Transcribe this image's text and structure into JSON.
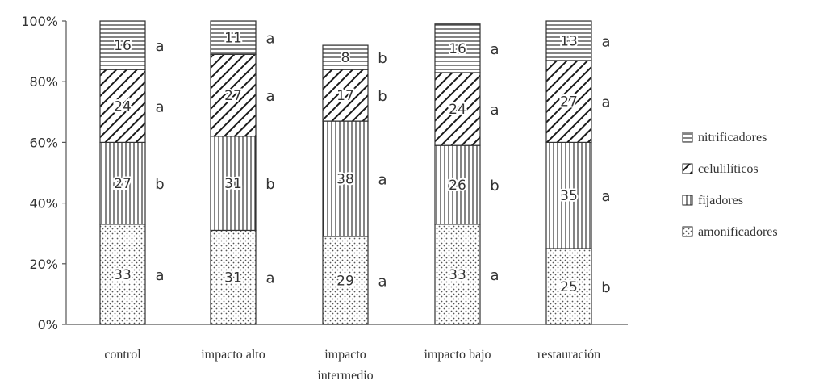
{
  "chart_data": {
    "type": "bar",
    "stacked": true,
    "percent_scale": true,
    "categories": [
      [
        "control"
      ],
      [
        "impacto alto"
      ],
      [
        "impacto",
        "intermedio"
      ],
      [
        "impacto bajo"
      ],
      [
        "restauración"
      ]
    ],
    "series": [
      {
        "name": "amonificadores",
        "pattern": "dots",
        "values": [
          33,
          31,
          29,
          33,
          25
        ],
        "significance": [
          "a",
          "a",
          "a",
          "a",
          "b"
        ]
      },
      {
        "name": "fijadores",
        "pattern": "vertical",
        "values": [
          27,
          31,
          38,
          26,
          35
        ],
        "significance": [
          "b",
          "b",
          "a",
          "b",
          "a"
        ]
      },
      {
        "name": "celulilíticos",
        "pattern": "diagonal",
        "values": [
          24,
          27,
          17,
          24,
          27
        ],
        "significance": [
          "a",
          "a",
          "b",
          "a",
          "a"
        ]
      },
      {
        "name": "nitrificadores",
        "pattern": "horizontal",
        "values": [
          16,
          11,
          8,
          16,
          13
        ],
        "significance": [
          "a",
          "a",
          "b",
          "a",
          "a"
        ]
      }
    ],
    "ylim": [
      0,
      100
    ],
    "yticks": [
      "0%",
      "20%",
      "40%",
      "60%",
      "80%",
      "100%"
    ],
    "legend_order": [
      "nitrificadores",
      "celulilíticos",
      "fijadores",
      "amonificadores"
    ],
    "legend_position": "right",
    "grid": false
  }
}
